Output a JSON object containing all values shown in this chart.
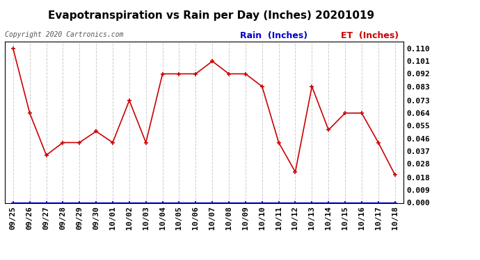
{
  "title": "Evapotranspiration vs Rain per Day (Inches) 20201019",
  "copyright_text": "Copyright 2020 Cartronics.com",
  "legend_rain_label": "Rain  (Inches)",
  "legend_et_label": "ET  (Inches)",
  "x_labels": [
    "09/25",
    "09/26",
    "09/27",
    "09/28",
    "09/29",
    "09/30",
    "10/01",
    "10/02",
    "10/03",
    "10/04",
    "10/05",
    "10/06",
    "10/07",
    "10/08",
    "10/09",
    "10/10",
    "10/11",
    "10/12",
    "10/13",
    "10/14",
    "10/15",
    "10/16",
    "10/17",
    "10/18"
  ],
  "et_values": [
    0.11,
    0.064,
    0.034,
    0.043,
    0.043,
    0.051,
    0.043,
    0.073,
    0.043,
    0.092,
    0.092,
    0.092,
    0.101,
    0.092,
    0.092,
    0.083,
    0.043,
    0.022,
    0.083,
    0.052,
    0.064,
    0.064,
    0.043,
    0.02
  ],
  "rain_values": [
    0.0,
    0.0,
    0.0,
    0.0,
    0.0,
    0.0,
    0.0,
    0.0,
    0.0,
    0.0,
    0.0,
    0.0,
    0.0,
    0.0,
    0.0,
    0.0,
    0.0,
    0.0,
    0.0,
    0.0,
    0.0,
    0.0,
    0.0,
    0.0
  ],
  "y_ticks": [
    0.0,
    0.009,
    0.018,
    0.028,
    0.037,
    0.046,
    0.055,
    0.064,
    0.073,
    0.083,
    0.092,
    0.101,
    0.11
  ],
  "ylim": [
    0.0,
    0.115
  ],
  "et_color": "#cc0000",
  "rain_color": "#0000cc",
  "marker": "+",
  "grid_color": "#cccccc",
  "background_color": "#ffffff",
  "title_fontsize": 11,
  "tick_fontsize": 8,
  "legend_fontsize": 9,
  "copyright_fontsize": 7
}
